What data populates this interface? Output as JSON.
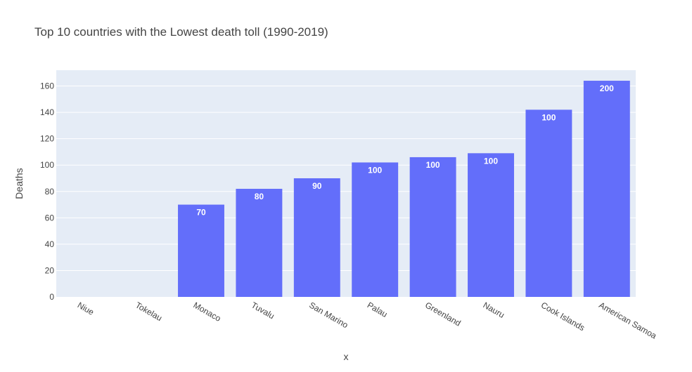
{
  "chart_data": {
    "type": "bar",
    "title": "Top 10 countries with the Lowest death toll (1990-2019)",
    "xlabel": "x",
    "ylabel": "Deaths",
    "categories": [
      "Niue",
      "Tokelau",
      "Monaco",
      "Tuvalu",
      "San Marino",
      "Palau",
      "Greenland",
      "Nauru",
      "Cook Islands",
      "American Samoa"
    ],
    "values": [
      0,
      0,
      70,
      82,
      90,
      102,
      106,
      109,
      142,
      164
    ],
    "bar_labels": [
      "",
      "",
      "70",
      "80",
      "90",
      "100",
      "100",
      "100",
      "100",
      "200"
    ],
    "ylim": [
      0,
      172
    ],
    "yticks": [
      0,
      20,
      40,
      60,
      80,
      100,
      120,
      140,
      160
    ],
    "grid": true,
    "colors": {
      "bar": "#636efa",
      "plot_bg": "#e5ecf6",
      "grid": "#ffffff"
    }
  }
}
